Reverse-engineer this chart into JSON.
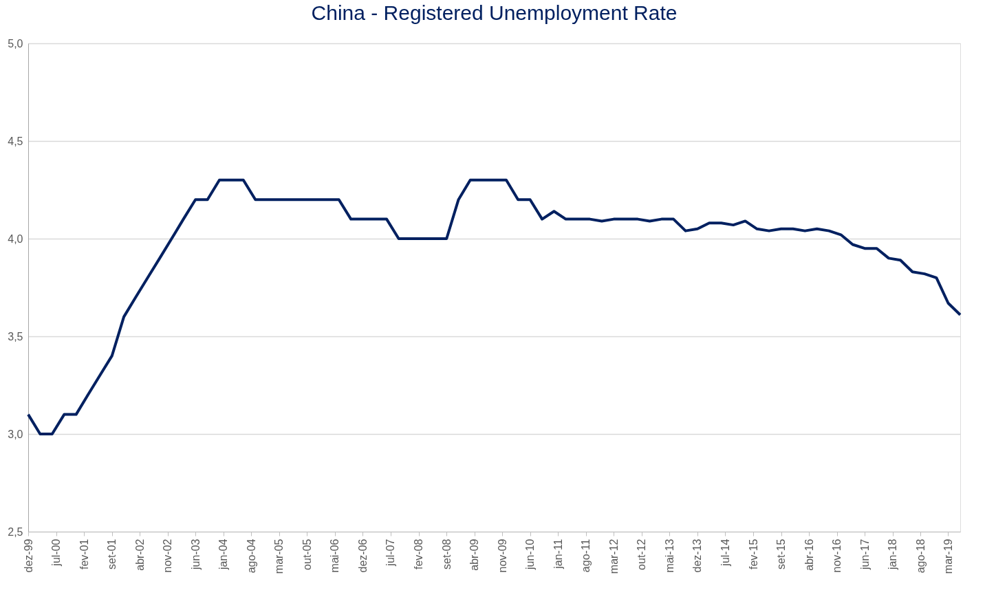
{
  "chart_data": {
    "type": "line",
    "title": "China - Registered Unemployment Rate",
    "x": [
      "1999-12",
      "2000-03",
      "2000-06",
      "2000-09",
      "2000-12",
      "2001-03",
      "2001-06",
      "2001-09",
      "2001-12",
      "2002-03",
      "2002-06",
      "2002-09",
      "2002-12",
      "2003-03",
      "2003-06",
      "2003-09",
      "2003-12",
      "2004-03",
      "2004-06",
      "2004-09",
      "2004-12",
      "2005-03",
      "2005-06",
      "2005-09",
      "2005-12",
      "2006-03",
      "2006-06",
      "2006-09",
      "2006-12",
      "2007-03",
      "2007-06",
      "2007-09",
      "2007-12",
      "2008-03",
      "2008-06",
      "2008-09",
      "2008-12",
      "2009-03",
      "2009-06",
      "2009-09",
      "2009-12",
      "2010-03",
      "2010-06",
      "2010-09",
      "2010-12",
      "2011-03",
      "2011-06",
      "2011-09",
      "2011-12",
      "2012-03",
      "2012-06",
      "2012-09",
      "2012-12",
      "2013-03",
      "2013-06",
      "2013-09",
      "2013-12",
      "2014-03",
      "2014-06",
      "2014-09",
      "2014-12",
      "2015-03",
      "2015-06",
      "2015-09",
      "2015-12",
      "2016-03",
      "2016-06",
      "2016-09",
      "2016-12",
      "2017-03",
      "2017-06",
      "2017-09",
      "2017-12",
      "2018-03",
      "2018-06",
      "2018-09",
      "2018-12",
      "2019-03",
      "2019-06"
    ],
    "series": [
      {
        "color": "#002060",
        "values": [
          3.1,
          3.0,
          3.0,
          3.1,
          3.1,
          3.2,
          3.3,
          3.4,
          3.6,
          3.7,
          3.8,
          3.9,
          4.0,
          4.1,
          4.2,
          4.2,
          4.3,
          4.3,
          4.3,
          4.2,
          4.2,
          4.2,
          4.2,
          4.2,
          4.2,
          4.2,
          4.2,
          4.1,
          4.1,
          4.1,
          4.1,
          4.0,
          4.0,
          4.0,
          4.0,
          4.0,
          4.2,
          4.3,
          4.3,
          4.3,
          4.3,
          4.2,
          4.2,
          4.1,
          4.14,
          4.1,
          4.1,
          4.1,
          4.09,
          4.1,
          4.1,
          4.1,
          4.09,
          4.1,
          4.1,
          4.04,
          4.05,
          4.08,
          4.08,
          4.07,
          4.09,
          4.05,
          4.04,
          4.05,
          4.05,
          4.04,
          4.05,
          4.04,
          4.02,
          3.97,
          3.95,
          3.95,
          3.9,
          3.89,
          3.83,
          3.82,
          3.8,
          3.67,
          3.61
        ]
      }
    ],
    "xlim": [
      "1999-12",
      "2019-06"
    ],
    "xticks": [
      {
        "value": "1999-12",
        "label": "dez-99"
      },
      {
        "value": "2000-07",
        "label": "jul-00"
      },
      {
        "value": "2001-02",
        "label": "fev-01"
      },
      {
        "value": "2001-09",
        "label": "set-01"
      },
      {
        "value": "2002-04",
        "label": "abr-02"
      },
      {
        "value": "2002-11",
        "label": "nov-02"
      },
      {
        "value": "2003-06",
        "label": "jun-03"
      },
      {
        "value": "2004-01",
        "label": "jan-04"
      },
      {
        "value": "2004-08",
        "label": "ago-04"
      },
      {
        "value": "2005-03",
        "label": "mar-05"
      },
      {
        "value": "2005-10",
        "label": "out-05"
      },
      {
        "value": "2006-05",
        "label": "mai-06"
      },
      {
        "value": "2006-12",
        "label": "dez-06"
      },
      {
        "value": "2007-07",
        "label": "jul-07"
      },
      {
        "value": "2008-02",
        "label": "fev-08"
      },
      {
        "value": "2008-09",
        "label": "set-08"
      },
      {
        "value": "2009-04",
        "label": "abr-09"
      },
      {
        "value": "2009-11",
        "label": "nov-09"
      },
      {
        "value": "2010-06",
        "label": "jun-10"
      },
      {
        "value": "2011-01",
        "label": "jan-11"
      },
      {
        "value": "2011-08",
        "label": "ago-11"
      },
      {
        "value": "2012-03",
        "label": "mar-12"
      },
      {
        "value": "2012-10",
        "label": "out-12"
      },
      {
        "value": "2013-05",
        "label": "mai-13"
      },
      {
        "value": "2013-12",
        "label": "dez-13"
      },
      {
        "value": "2014-07",
        "label": "jul-14"
      },
      {
        "value": "2015-02",
        "label": "fev-15"
      },
      {
        "value": "2015-09",
        "label": "set-15"
      },
      {
        "value": "2016-04",
        "label": "abr-16"
      },
      {
        "value": "2016-11",
        "label": "nov-16"
      },
      {
        "value": "2017-06",
        "label": "jun-17"
      },
      {
        "value": "2018-01",
        "label": "jan-18"
      },
      {
        "value": "2018-08",
        "label": "ago-18"
      },
      {
        "value": "2019-03",
        "label": "mar-19"
      }
    ],
    "ylim": [
      2.5,
      5.0
    ],
    "yticks": [
      {
        "value": 2.5,
        "label": "2,5"
      },
      {
        "value": 3.0,
        "label": "3,0"
      },
      {
        "value": 3.5,
        "label": "3,5"
      },
      {
        "value": 4.0,
        "label": "4,0"
      },
      {
        "value": 4.5,
        "label": "4,5"
      },
      {
        "value": 5.0,
        "label": "5,0"
      }
    ],
    "grid": "y",
    "marker": "none",
    "line_style": "solid"
  }
}
